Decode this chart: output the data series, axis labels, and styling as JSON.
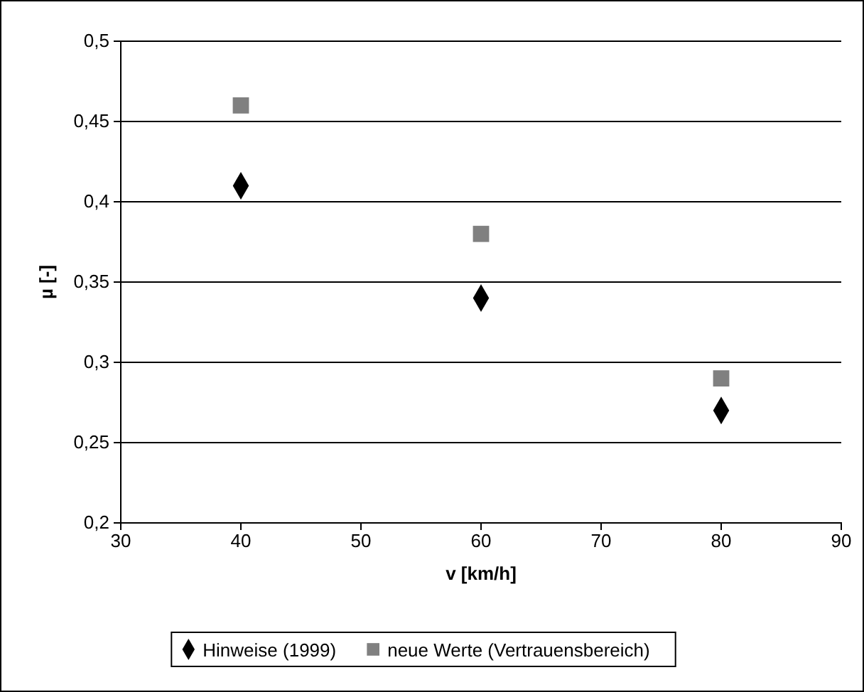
{
  "chart_data": {
    "type": "scatter",
    "xlabel": "v [km/h]",
    "ylabel": "µ [-]",
    "x": [
      40,
      60,
      80
    ],
    "series": [
      {
        "name": "Hinweise (1999)",
        "color": "#000000",
        "marker": "diamond",
        "values": [
          0.41,
          0.34,
          0.27
        ]
      },
      {
        "name": "neue Werte (Vertrauensbereich)",
        "color": "#808080",
        "marker": "square",
        "values": [
          0.46,
          0.38,
          0.29
        ]
      }
    ],
    "xlim": [
      30,
      90
    ],
    "xticks": [
      30,
      40,
      50,
      60,
      70,
      80,
      90
    ],
    "ylim": [
      0.2,
      0.5
    ],
    "yticks": [
      {
        "value": 0.2,
        "label": "0,2"
      },
      {
        "value": 0.25,
        "label": "0,25"
      },
      {
        "value": 0.3,
        "label": "0,3"
      },
      {
        "value": 0.35,
        "label": "0,35"
      },
      {
        "value": 0.4,
        "label": "0,4"
      },
      {
        "value": 0.45,
        "label": "0,45"
      },
      {
        "value": 0.5,
        "label": "0,5"
      }
    ],
    "grid": "y",
    "legend": "bottom"
  }
}
